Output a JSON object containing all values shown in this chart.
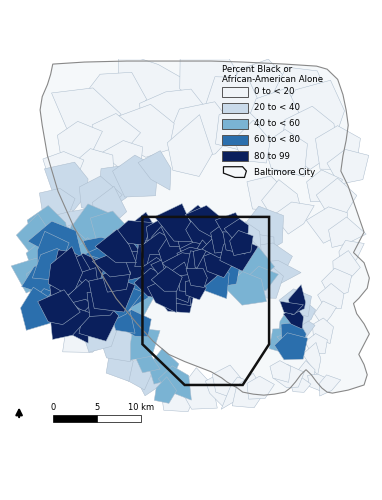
{
  "legend_title": "Percent Black or\nAfrican-American Alone",
  "legend_labels": [
    "0 to < 20",
    "20 to < 40",
    "40 to < 60",
    "60 to < 80",
    "80 to 99"
  ],
  "legend_colors": [
    "#f0f4f8",
    "#c9daea",
    "#7ab3d3",
    "#2b6fad",
    "#0a1f5c"
  ],
  "tract_edge_color": "#aabbcc",
  "outer_edge_color": "#888888",
  "city_edge_color": "#111111",
  "bg_color": "#ffffff",
  "city_label": "Baltimore City",
  "figsize": [
    3.82,
    5.0
  ],
  "dpi": 100
}
